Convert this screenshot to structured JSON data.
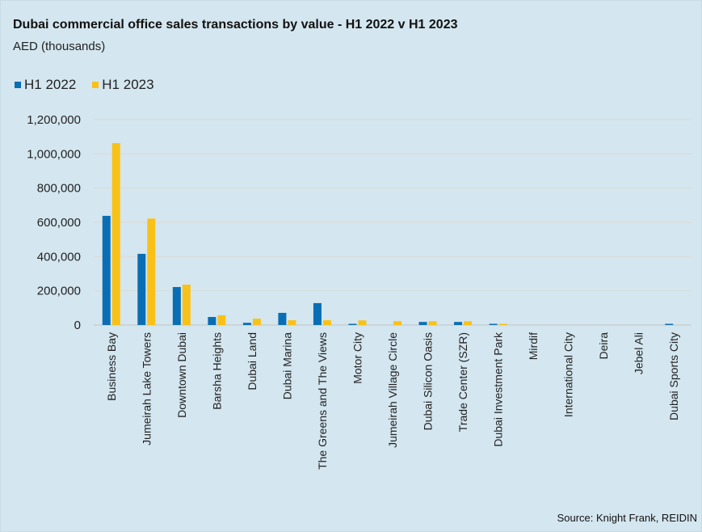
{
  "chart_data": {
    "type": "bar",
    "title": "Dubai commercial office sales transactions by value - H1 2022 v H1 2023",
    "subtitle": "AED (thousands)",
    "xlabel": "",
    "ylabel": "AED (thousands)",
    "ylim": [
      0,
      1200000
    ],
    "yticks": [
      0,
      200000,
      400000,
      600000,
      800000,
      1000000,
      1200000
    ],
    "ytick_labels": [
      "0",
      "200,000",
      "400,000",
      "600,000",
      "800,000",
      "1,000,000",
      "1,200,000"
    ],
    "grid": true,
    "legend_position": "top-left",
    "categories": [
      "Business Bay",
      "Jumeirah Lake Towers",
      "Downtown Dubai",
      "Barsha Heights",
      "Dubai Land",
      "Dubai Marina",
      "The Greens and The Views",
      "Motor City",
      "Jumeirah Village Circle",
      "Dubai Silicon Oasis",
      "Trade Center (SZR)",
      "Dubai Investment Park",
      "Mirdif",
      "International City",
      "Deira",
      "Jebel Ali",
      "Dubai Sports City"
    ],
    "series": [
      {
        "name": "H1 2022",
        "color": "#0a6eb4",
        "values": [
          638000,
          416000,
          222000,
          47000,
          13000,
          71000,
          128000,
          5000,
          0,
          18000,
          18000,
          5000,
          0,
          0,
          0,
          0,
          5000
        ]
      },
      {
        "name": "H1 2023",
        "color": "#f9c118",
        "values": [
          1063000,
          622000,
          236000,
          57000,
          37000,
          28000,
          28000,
          27000,
          22000,
          22000,
          22000,
          3000,
          0,
          0,
          0,
          0,
          0
        ]
      }
    ],
    "source": "Source: Knight Frank, REIDIN"
  }
}
